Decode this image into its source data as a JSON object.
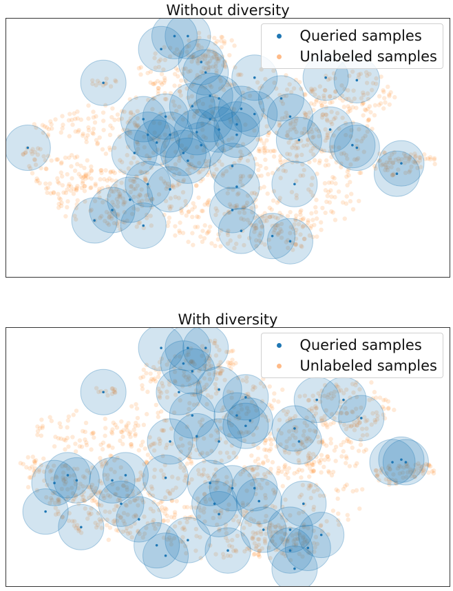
{
  "colors": {
    "queried": "#1f77b4",
    "unlabeled": "#ff7f0e",
    "frame": "#333333"
  },
  "chart_data": [
    {
      "type": "scatter",
      "title": "Without diversity",
      "xlim": [
        0,
        100
      ],
      "ylim": [
        0,
        100
      ],
      "legend": {
        "location": "top-right",
        "entries": [
          "Queried samples",
          "Unlabeled samples"
        ]
      },
      "series": [
        {
          "name": "Queried samples",
          "points": [
            [
              35,
              88
            ],
            [
              38,
              93
            ],
            [
              41,
              93
            ],
            [
              44,
              83
            ],
            [
              45,
              79
            ],
            [
              22,
              75
            ],
            [
              56,
              77
            ],
            [
              72,
              77
            ],
            [
              79,
              76
            ],
            [
              5,
              50
            ],
            [
              31,
              61
            ],
            [
              36,
              62
            ],
            [
              32,
              55
            ],
            [
              34,
              52
            ],
            [
              37,
              55
            ],
            [
              29,
              48
            ],
            [
              40,
              48
            ],
            [
              43,
              56
            ],
            [
              46,
              61
            ],
            [
              48,
              57
            ],
            [
              52,
              55
            ],
            [
              42,
              66
            ],
            [
              46,
              70
            ],
            [
              48,
              69
            ],
            [
              53,
              65
            ],
            [
              52,
              59
            ],
            [
              62,
              69
            ],
            [
              64,
              62
            ],
            [
              73,
              57
            ],
            [
              66,
              53
            ],
            [
              79,
              50
            ],
            [
              78,
              51
            ],
            [
              89,
              44
            ],
            [
              88,
              40
            ],
            [
              65,
              36
            ],
            [
              51,
              43
            ],
            [
              52,
              35
            ],
            [
              51,
              26
            ],
            [
              24,
              26
            ],
            [
              31,
              20
            ],
            [
              20,
              22
            ],
            [
              28,
              30
            ],
            [
              32,
              36
            ],
            [
              37,
              34
            ],
            [
              53,
              18
            ],
            [
              60,
              16
            ],
            [
              64,
              14
            ],
            [
              56,
              63
            ],
            [
              44,
              51
            ],
            [
              41,
              45
            ]
          ]
        },
        {
          "name": "Unlabeled samples",
          "description": "dense cloud of faint points covering the main mass of the embedding"
        }
      ]
    },
    {
      "type": "scatter",
      "title": "With diversity",
      "xlim": [
        0,
        100
      ],
      "ylim": [
        0,
        100
      ],
      "legend": {
        "location": "top-right",
        "entries": [
          "Queried samples",
          "Unlabeled samples"
        ]
      },
      "series": [
        {
          "name": "Queried samples",
          "points": [
            [
              35,
              92
            ],
            [
              41,
              92
            ],
            [
              45,
              92
            ],
            [
              40,
              86
            ],
            [
              42,
              83
            ],
            [
              22,
              75
            ],
            [
              39,
              75
            ],
            [
              48,
              76
            ],
            [
              54,
              73
            ],
            [
              52,
              66
            ],
            [
              42,
              66
            ],
            [
              43,
              58
            ],
            [
              37,
              56
            ],
            [
              48,
              56
            ],
            [
              54,
              62
            ],
            [
              55,
              64
            ],
            [
              65,
              61
            ],
            [
              70,
              72
            ],
            [
              76,
              72
            ],
            [
              80,
              65
            ],
            [
              11,
              40
            ],
            [
              14,
              43
            ],
            [
              16,
              41
            ],
            [
              24,
              41
            ],
            [
              27,
              43
            ],
            [
              36,
              42
            ],
            [
              46,
              40
            ],
            [
              51,
              38
            ],
            [
              47,
              32
            ],
            [
              56,
              38
            ],
            [
              57,
              33
            ],
            [
              48,
              28
            ],
            [
              58,
              22
            ],
            [
              64,
              22
            ],
            [
              67,
              32
            ],
            [
              68,
              15
            ],
            [
              71,
              20
            ],
            [
              64,
              14
            ],
            [
              87,
              48
            ],
            [
              89,
              49
            ],
            [
              90,
              48
            ],
            [
              66,
              56
            ],
            [
              9,
              29
            ],
            [
              17,
              23
            ],
            [
              26,
              32
            ],
            [
              30,
              26
            ],
            [
              34,
              16
            ],
            [
              36,
              12
            ],
            [
              41,
              18
            ],
            [
              50,
              14
            ],
            [
              65,
              7
            ]
          ]
        },
        {
          "name": "Unlabeled samples",
          "description": "dense cloud of faint points covering the main mass of the embedding"
        }
      ]
    }
  ]
}
